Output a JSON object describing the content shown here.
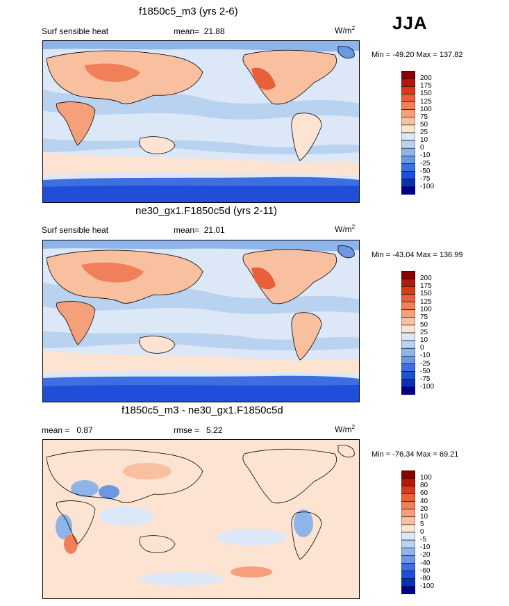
{
  "season": "JJA",
  "chart_data": [
    {
      "type": "heatmap",
      "title": "f1850c5_m3 (yrs 2-6)",
      "variable": "Surf sensible heat",
      "mean_label": "mean=",
      "mean": "21.88",
      "units": "W/m",
      "units_exp": "2",
      "min_label": "Min = -49.20 Max = 137.82",
      "min": -49.2,
      "max": 137.82,
      "levels": [
        "200",
        "175",
        "150",
        "125",
        "100",
        "75",
        "50",
        "25",
        "10",
        "0",
        "-10",
        "-25",
        "-50",
        "-75",
        "-100"
      ],
      "colors": [
        "#8b0000",
        "#b2180c",
        "#d73a1a",
        "#e8603a",
        "#f0805a",
        "#f5a07a",
        "#f9c0a0",
        "#fde4d2",
        "#dce8f7",
        "#b9d2f0",
        "#8fb4ea",
        "#6b98e0",
        "#3f6ee0",
        "#1f4fd8",
        "#0a2fb8",
        "#00008b"
      ]
    },
    {
      "type": "heatmap",
      "title": "ne30_gx1.F1850c5d (yrs 2-11)",
      "variable": "Surf sensible heat",
      "mean_label": "mean=",
      "mean": "21.01",
      "units": "W/m",
      "units_exp": "2",
      "min_label": "Min = -43.04 Max = 136.99",
      "min": -43.04,
      "max": 136.99,
      "levels": [
        "200",
        "175",
        "150",
        "125",
        "100",
        "75",
        "50",
        "25",
        "10",
        "0",
        "-10",
        "-25",
        "-50",
        "-75",
        "-100"
      ],
      "colors": [
        "#8b0000",
        "#b2180c",
        "#d73a1a",
        "#e8603a",
        "#f0805a",
        "#f5a07a",
        "#f9c0a0",
        "#fde4d2",
        "#dce8f7",
        "#b9d2f0",
        "#8fb4ea",
        "#6b98e0",
        "#3f6ee0",
        "#1f4fd8",
        "#0a2fb8",
        "#00008b"
      ]
    },
    {
      "type": "heatmap",
      "title": "f1850c5_m3 - ne30_gx1.F1850c5d",
      "mean_label": "mean =",
      "mean": "0.87",
      "rmse_label": "rmse =",
      "rmse": "5.22",
      "units": "W/m",
      "units_exp": "2",
      "min_label": "Min = -76.34 Max =  69.21",
      "min": -76.34,
      "max": 69.21,
      "levels": [
        "100",
        "80",
        "60",
        "40",
        "20",
        "10",
        "5",
        "0",
        "-5",
        "-10",
        "-20",
        "-40",
        "-60",
        "-80",
        "-100"
      ],
      "colors": [
        "#8b0000",
        "#b2180c",
        "#d73a1a",
        "#e8603a",
        "#f0805a",
        "#f5a07a",
        "#f9c0a0",
        "#fde4d2",
        "#dce8f7",
        "#b9d2f0",
        "#8fb4ea",
        "#6b98e0",
        "#3f6ee0",
        "#1f4fd8",
        "#0a2fb8",
        "#00008b"
      ]
    }
  ]
}
